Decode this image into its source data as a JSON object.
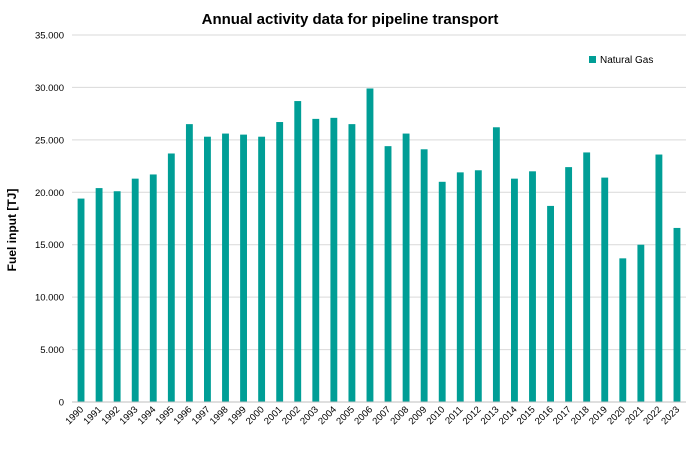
{
  "chart_data": {
    "type": "bar",
    "title": "Annual activity data for pipeline transport",
    "xlabel": "",
    "ylabel": "Fuel input [TJ]",
    "ylim": [
      0,
      35000
    ],
    "yticks": [
      0,
      5000,
      10000,
      15000,
      20000,
      25000,
      30000,
      35000
    ],
    "ytick_labels": [
      "0",
      "5.000",
      "10.000",
      "15.000",
      "20.000",
      "25.000",
      "30.000",
      "35.000"
    ],
    "grid": true,
    "legend_position": "top-right",
    "categories": [
      "1990",
      "1991",
      "1992",
      "1993",
      "1994",
      "1995",
      "1996",
      "1997",
      "1998",
      "1999",
      "2000",
      "2001",
      "2002",
      "2003",
      "2004",
      "2005",
      "2006",
      "2007",
      "2008",
      "2009",
      "2010",
      "2011",
      "2012",
      "2013",
      "2014",
      "2015",
      "2016",
      "2017",
      "2018",
      "2019",
      "2020",
      "2021",
      "2022",
      "2023"
    ],
    "series": [
      {
        "name": "Natural Gas",
        "color": "#009e96",
        "values": [
          19400,
          20400,
          20100,
          21300,
          21700,
          23700,
          26500,
          25300,
          25600,
          25500,
          25300,
          26700,
          28700,
          27000,
          27100,
          26500,
          29900,
          24400,
          25600,
          24100,
          21000,
          21900,
          22100,
          26200,
          21300,
          22000,
          18700,
          22400,
          23800,
          21400,
          13700,
          15000,
          23600,
          16600
        ]
      }
    ]
  }
}
